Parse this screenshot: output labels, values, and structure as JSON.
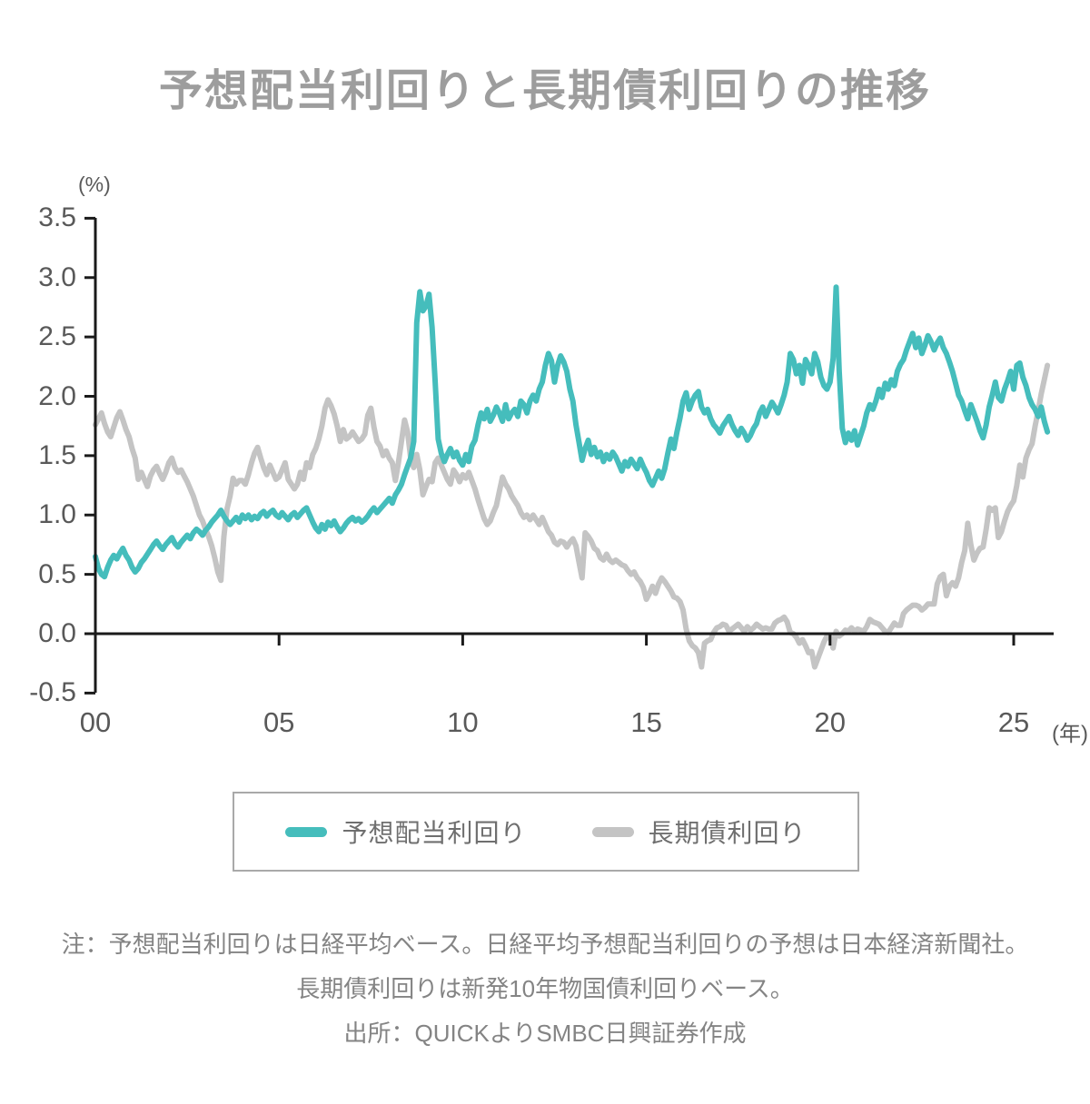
{
  "chart_data": {
    "type": "line",
    "title": "予想配当利回りと長期債利回りの推移",
    "y_unit_label": "(%)",
    "x_unit_label": "(年)",
    "ylim": [
      -0.5,
      3.5
    ],
    "grid": false,
    "legend_position": "bottom-box",
    "axis_color": "#1a1a1a",
    "tick_label_color": "#595959",
    "y_ticks": [
      {
        "label": "3.5",
        "value": 3.5
      },
      {
        "label": "3.0",
        "value": 3.0
      },
      {
        "label": "2.5",
        "value": 2.5
      },
      {
        "label": "2.0",
        "value": 2.0
      },
      {
        "label": "1.5",
        "value": 1.5
      },
      {
        "label": "1.0",
        "value": 1.0
      },
      {
        "label": "0.5",
        "value": 0.5
      },
      {
        "label": "0.0",
        "value": 0.0
      },
      {
        "label": "-0.5",
        "value": -0.5
      }
    ],
    "x_ticks": [
      {
        "label": "00",
        "year": 2000
      },
      {
        "label": "05",
        "year": 2005
      },
      {
        "label": "10",
        "year": 2010
      },
      {
        "label": "15",
        "year": 2015
      },
      {
        "label": "20",
        "year": 2020
      },
      {
        "label": "25",
        "year": 2025
      }
    ],
    "x_start_year": 2000,
    "x_step_months": 1,
    "series": [
      {
        "name": "長期債利回り",
        "color": "#c4c4c4",
        "values": [
          1.76,
          1.81,
          1.86,
          1.77,
          1.7,
          1.66,
          1.74,
          1.82,
          1.87,
          1.8,
          1.72,
          1.66,
          1.56,
          1.48,
          1.3,
          1.36,
          1.3,
          1.24,
          1.33,
          1.38,
          1.41,
          1.35,
          1.3,
          1.36,
          1.44,
          1.48,
          1.4,
          1.36,
          1.38,
          1.33,
          1.28,
          1.22,
          1.16,
          1.08,
          1.0,
          0.95,
          0.88,
          0.82,
          0.74,
          0.64,
          0.52,
          0.45,
          0.82,
          1.05,
          1.16,
          1.31,
          1.26,
          1.29,
          1.29,
          1.26,
          1.34,
          1.44,
          1.52,
          1.57,
          1.48,
          1.4,
          1.34,
          1.42,
          1.36,
          1.3,
          1.32,
          1.38,
          1.44,
          1.3,
          1.26,
          1.22,
          1.26,
          1.36,
          1.3,
          1.44,
          1.4,
          1.51,
          1.56,
          1.64,
          1.75,
          1.9,
          1.97,
          1.92,
          1.85,
          1.75,
          1.62,
          1.72,
          1.64,
          1.66,
          1.7,
          1.66,
          1.62,
          1.64,
          1.68,
          1.84,
          1.9,
          1.74,
          1.62,
          1.58,
          1.5,
          1.54,
          1.48,
          1.44,
          1.29,
          1.44,
          1.62,
          1.8,
          1.7,
          1.48,
          1.4,
          1.51,
          1.38,
          1.17,
          1.24,
          1.3,
          1.28,
          1.44,
          1.48,
          1.42,
          1.36,
          1.3,
          1.26,
          1.38,
          1.34,
          1.28,
          1.34,
          1.31,
          1.36,
          1.29,
          1.22,
          1.13,
          1.05,
          0.97,
          0.92,
          0.95,
          1.02,
          1.08,
          1.2,
          1.32,
          1.26,
          1.22,
          1.16,
          1.12,
          1.08,
          1.02,
          0.98,
          1.0,
          0.96,
          1.0,
          0.96,
          0.92,
          0.98,
          0.92,
          0.86,
          0.83,
          0.77,
          0.75,
          0.78,
          0.77,
          0.73,
          0.77,
          0.8,
          0.74,
          0.6,
          0.47,
          0.85,
          0.82,
          0.78,
          0.72,
          0.7,
          0.64,
          0.62,
          0.67,
          0.62,
          0.6,
          0.62,
          0.6,
          0.58,
          0.57,
          0.53,
          0.5,
          0.52,
          0.47,
          0.44,
          0.39,
          0.29,
          0.34,
          0.4,
          0.34,
          0.42,
          0.47,
          0.44,
          0.4,
          0.36,
          0.31,
          0.3,
          0.27,
          0.2,
          0.04,
          -0.06,
          -0.1,
          -0.12,
          -0.16,
          -0.28,
          -0.08,
          -0.06,
          -0.05,
          0.01,
          0.05,
          0.06,
          0.08,
          0.07,
          0.02,
          0.04,
          0.06,
          0.08,
          0.05,
          0.02,
          0.06,
          0.03,
          0.05,
          0.08,
          0.06,
          0.04,
          0.05,
          0.04,
          0.04,
          0.09,
          0.11,
          0.12,
          0.14,
          0.1,
          0.01,
          0.0,
          -0.03,
          -0.08,
          -0.05,
          -0.1,
          -0.16,
          -0.15,
          -0.28,
          -0.21,
          -0.14,
          -0.07,
          -0.02,
          -0.03,
          -0.12,
          0.02,
          -0.02,
          0.0,
          0.03,
          0.02,
          0.05,
          0.02,
          0.04,
          0.03,
          0.02,
          0.06,
          0.12,
          0.1,
          0.09,
          0.08,
          0.05,
          0.02,
          0.01,
          0.05,
          0.09,
          0.07,
          0.07,
          0.17,
          0.2,
          0.22,
          0.24,
          0.24,
          0.23,
          0.2,
          0.22,
          0.25,
          0.25,
          0.25,
          0.42,
          0.48,
          0.5,
          0.32,
          0.4,
          0.43,
          0.4,
          0.47,
          0.6,
          0.7,
          0.93,
          0.75,
          0.62,
          0.68,
          0.72,
          0.73,
          0.88,
          1.06,
          1.04,
          1.06,
          0.81,
          0.86,
          0.95,
          1.03,
          1.08,
          1.12,
          1.25,
          1.42,
          1.32,
          1.48,
          1.55,
          1.6,
          1.75,
          1.88,
          2.02,
          2.14,
          2.26
        ]
      },
      {
        "name": "予想配当利回り",
        "color": "#45bdbc",
        "values": [
          0.65,
          0.55,
          0.5,
          0.48,
          0.56,
          0.62,
          0.66,
          0.63,
          0.68,
          0.72,
          0.66,
          0.62,
          0.56,
          0.52,
          0.55,
          0.6,
          0.63,
          0.67,
          0.71,
          0.75,
          0.78,
          0.74,
          0.71,
          0.75,
          0.78,
          0.81,
          0.76,
          0.73,
          0.77,
          0.8,
          0.83,
          0.8,
          0.85,
          0.88,
          0.86,
          0.83,
          0.87,
          0.9,
          0.94,
          0.97,
          1.0,
          1.04,
          0.99,
          0.95,
          0.92,
          0.95,
          0.98,
          0.94,
          1.0,
          0.97,
          1.0,
          0.96,
          0.99,
          0.97,
          1.01,
          1.03,
          0.99,
          1.02,
          1.04,
          1.0,
          0.98,
          1.02,
          0.99,
          0.96,
          1.0,
          1.02,
          0.98,
          1.01,
          1.04,
          1.06,
          1.0,
          0.94,
          0.89,
          0.86,
          0.92,
          0.88,
          0.94,
          0.91,
          0.95,
          0.9,
          0.86,
          0.89,
          0.93,
          0.96,
          0.98,
          0.95,
          0.97,
          0.94,
          0.96,
          0.99,
          1.03,
          1.06,
          1.02,
          1.05,
          1.08,
          1.11,
          1.14,
          1.1,
          1.17,
          1.21,
          1.26,
          1.34,
          1.41,
          1.48,
          1.62,
          2.62,
          2.88,
          2.72,
          2.76,
          2.86,
          2.58,
          2.12,
          1.64,
          1.52,
          1.45,
          1.51,
          1.56,
          1.49,
          1.53,
          1.46,
          1.42,
          1.51,
          1.45,
          1.58,
          1.63,
          1.76,
          1.86,
          1.81,
          1.89,
          1.79,
          1.84,
          1.91,
          1.86,
          1.79,
          1.93,
          1.81,
          1.86,
          1.89,
          1.83,
          1.96,
          1.93,
          1.86,
          1.96,
          2.01,
          1.96,
          2.06,
          2.12,
          2.26,
          2.36,
          2.3,
          2.12,
          2.26,
          2.34,
          2.29,
          2.21,
          2.06,
          1.96,
          1.76,
          1.61,
          1.46,
          1.56,
          1.63,
          1.51,
          1.57,
          1.49,
          1.53,
          1.45,
          1.51,
          1.47,
          1.53,
          1.49,
          1.43,
          1.37,
          1.45,
          1.41,
          1.47,
          1.43,
          1.39,
          1.47,
          1.41,
          1.36,
          1.29,
          1.25,
          1.31,
          1.37,
          1.31,
          1.39,
          1.52,
          1.64,
          1.56,
          1.7,
          1.82,
          1.96,
          2.03,
          1.89,
          1.96,
          2.01,
          2.04,
          1.91,
          1.86,
          1.89,
          1.81,
          1.76,
          1.73,
          1.69,
          1.75,
          1.79,
          1.83,
          1.76,
          1.71,
          1.67,
          1.73,
          1.69,
          1.63,
          1.67,
          1.73,
          1.77,
          1.86,
          1.91,
          1.83,
          1.89,
          1.95,
          1.91,
          1.86,
          1.93,
          2.01,
          2.12,
          2.36,
          2.31,
          2.19,
          2.26,
          2.11,
          2.31,
          2.26,
          2.19,
          2.36,
          2.29,
          2.16,
          2.09,
          2.06,
          2.12,
          2.32,
          2.92,
          2.21,
          1.73,
          1.61,
          1.69,
          1.63,
          1.71,
          1.59,
          1.67,
          1.75,
          1.86,
          1.93,
          1.89,
          1.96,
          2.06,
          1.99,
          2.11,
          2.06,
          2.14,
          2.09,
          2.21,
          2.27,
          2.31,
          2.39,
          2.46,
          2.53,
          2.41,
          2.49,
          2.36,
          2.43,
          2.51,
          2.46,
          2.39,
          2.45,
          2.49,
          2.41,
          2.36,
          2.29,
          2.21,
          2.11,
          2.01,
          1.96,
          1.88,
          1.81,
          1.93,
          1.86,
          1.79,
          1.71,
          1.65,
          1.76,
          1.91,
          2.01,
          2.12,
          1.99,
          1.96,
          2.06,
          2.13,
          2.21,
          2.06,
          2.26,
          2.28,
          2.16,
          2.09,
          1.99,
          1.93,
          1.89,
          1.83,
          1.91,
          1.79,
          1.7
        ]
      }
    ]
  },
  "legend": {
    "dividend_label": "予想配当利回り",
    "bond_label": "長期債利回り"
  },
  "notes": {
    "line1": "注：予想配当利回りは日経平均ベース。日経平均予想配当利回りの予想は日本経済新聞社。",
    "line2": "長期債利回りは新発10年物国債利回りベース。",
    "line3": "出所：QUICKよりSMBC日興証券作成"
  }
}
